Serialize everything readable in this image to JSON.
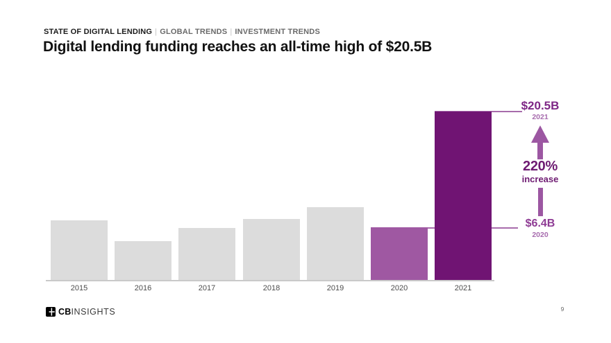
{
  "header": {
    "eyebrow": {
      "primary": "STATE OF DIGITAL LENDING",
      "separator": "|",
      "secondary": "GLOBAL TRENDS",
      "tertiary": "INVESTMENT TRENDS"
    },
    "title": "Digital lending funding reaches an all-time high of $20.5B"
  },
  "chart_data": {
    "type": "bar",
    "categories": [
      "2015",
      "2016",
      "2017",
      "2018",
      "2019",
      "2020",
      "2021"
    ],
    "values": [
      7.2,
      4.7,
      6.3,
      7.4,
      8.8,
      6.4,
      20.5
    ],
    "unit": "$B",
    "title": "Digital lending funding reaches an all-time high of $20.5B",
    "xlabel": "",
    "ylabel": "",
    "ylim": [
      0,
      20.5
    ],
    "grid": false,
    "legend": false,
    "labeled_values": {
      "2020": "$6.4B",
      "2021": "$20.5B"
    },
    "bar_colors": {
      "default": "#dcdcdc",
      "2020": "#9f58a2",
      "2021": "#701473"
    }
  },
  "annotations": {
    "top_value": "$20.5B",
    "top_year": "2021",
    "pct": "220%",
    "pct_word": "increase",
    "bottom_value": "$6.4B",
    "bottom_year": "2020"
  },
  "footer": {
    "logo_bold": "CB",
    "logo_light": "INSIGHTS",
    "page_number": "9"
  },
  "colors": {
    "bar_default": "#dcdcdc",
    "bar_2020": "#9f58a2",
    "bar_2021": "#701473",
    "callout_line": "#a76bab",
    "arrow": "#9c57a2",
    "value_dark_purple": "#7e2786",
    "value_medium_purple": "#8e3b94",
    "year_label_purple": "#a76cae",
    "pct_purple": "#6e1b72",
    "axis_gray": "#c9c9c9"
  }
}
